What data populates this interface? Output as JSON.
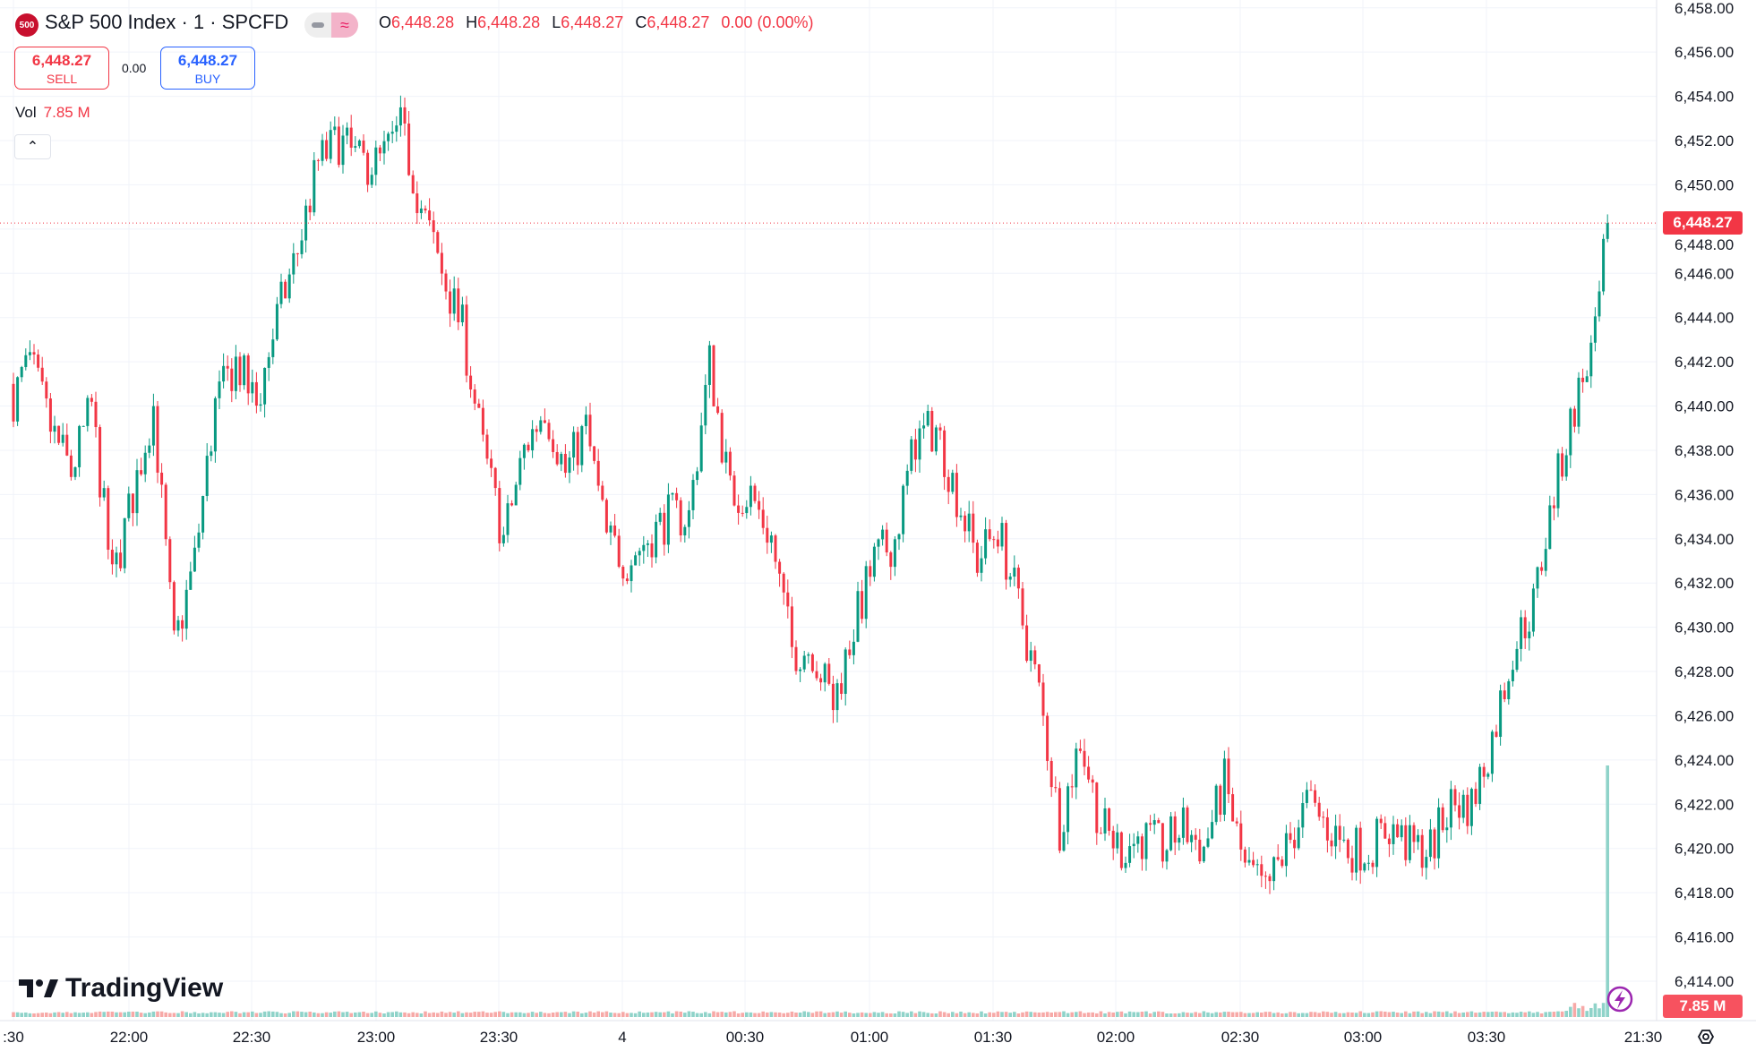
{
  "header": {
    "logo_text": "500",
    "title": "S&P 500 Index · 1 · SPCFD",
    "ohlc": {
      "o_label": "O",
      "o": "6,448.28",
      "h_label": "H",
      "h": "6,448.28",
      "l_label": "L",
      "l": "6,448.27",
      "c_label": "C",
      "c": "6,448.27",
      "change": "0.00 (0.00%)"
    }
  },
  "trade": {
    "sell_price": "6,448.27",
    "sell_label": "SELL",
    "spread": "0.00",
    "buy_price": "6,448.27",
    "buy_label": "BUY"
  },
  "volume": {
    "label": "Vol",
    "value": "7.85 M"
  },
  "collapse_icon": "chevron-up-icon",
  "brand": "TradingView",
  "colors": {
    "up": "#089981",
    "down": "#f23645",
    "vol_up": "#8fd3c9",
    "vol_down": "#f7a9a7",
    "grid": "#f0f3fa"
  },
  "chart_data": {
    "type": "candlestick",
    "interval": "1 minute",
    "ylim": [
      6413,
      6458
    ],
    "y_ticks": [
      "6,458.00",
      "6,456.00",
      "6,454.00",
      "6,452.00",
      "6,450.00",
      "6,448.00",
      "6,446.00",
      "6,444.00",
      "6,442.00",
      "6,440.00",
      "6,438.00",
      "6,436.00",
      "6,434.00",
      "6,432.00",
      "6,430.00",
      "6,428.00",
      "6,426.00",
      "6,424.00",
      "6,422.00",
      "6,420.00",
      "6,418.00",
      "6,416.00",
      "6,414.00"
    ],
    "y_tick_values": [
      6458,
      6456,
      6454,
      6452,
      6450,
      6448,
      6446,
      6444,
      6442,
      6440,
      6438,
      6436,
      6434,
      6432,
      6430,
      6428,
      6426,
      6424,
      6422,
      6420,
      6418,
      6416,
      6414
    ],
    "x_ticks": [
      ":30",
      "22:00",
      "22:30",
      "23:00",
      "23:30",
      "4",
      "00:30",
      "01:00",
      "01:30",
      "02:00",
      "02:30",
      "03:00",
      "03:30",
      "21:30"
    ],
    "current_price": 6448.27,
    "current_price_label": "6,448.27",
    "volume_label": "7.85 M",
    "times": [
      "21:30",
      "21:35",
      "21:40",
      "21:45",
      "21:50",
      "21:55",
      "22:00",
      "22:05",
      "22:10",
      "22:15",
      "22:20",
      "22:25",
      "22:30",
      "22:35",
      "22:40",
      "22:45",
      "22:50",
      "22:55",
      "23:00",
      "23:05",
      "23:10",
      "23:15",
      "23:20",
      "23:25",
      "23:30",
      "23:35",
      "23:40",
      "23:45",
      "23:50",
      "23:55",
      "00:00",
      "00:05",
      "00:10",
      "00:15",
      "00:20",
      "00:25",
      "00:30",
      "00:35",
      "00:40",
      "00:45",
      "00:50",
      "00:55",
      "01:00",
      "01:05",
      "01:10",
      "01:15",
      "01:20",
      "01:25",
      "01:30",
      "01:35",
      "01:40",
      "01:45",
      "01:50",
      "01:55",
      "02:00",
      "02:05",
      "02:10",
      "02:15",
      "02:20",
      "02:25",
      "02:30",
      "02:35",
      "02:40",
      "02:45",
      "02:50",
      "02:55",
      "03:00",
      "03:05",
      "03:10",
      "03:15",
      "03:20",
      "03:25",
      "03:30",
      "03:35",
      "03:40",
      "03:45",
      "03:50",
      "03:55",
      "03:58"
    ],
    "close_approx": [
      6440,
      6442,
      6439,
      6437,
      6440,
      6432,
      6436,
      6440,
      6429,
      6433,
      6440,
      6442,
      6440,
      6444,
      6447,
      6451,
      6452,
      6451,
      6451,
      6452.5,
      6449,
      6446,
      6443.5,
      6438,
      6434,
      6438,
      6440,
      6437,
      6439,
      6434,
      6433,
      6434,
      6435,
      6435,
      6442,
      6436,
      6436,
      6434,
      6429,
      6429,
      6426.5,
      6430,
      6433,
      6434,
      6438.5,
      6439,
      6436,
      6433,
      6434.5,
      6431,
      6427,
      6421,
      6425,
      6421,
      6420,
      6420.5,
      6420,
      6421,
      6420,
      6423,
      6419,
      6418,
      6420,
      6422,
      6421,
      6420,
      6420,
      6421,
      6420,
      6420,
      6422,
      6422,
      6425,
      6429,
      6431,
      6436,
      6440,
      6443,
      6448.27
    ]
  }
}
